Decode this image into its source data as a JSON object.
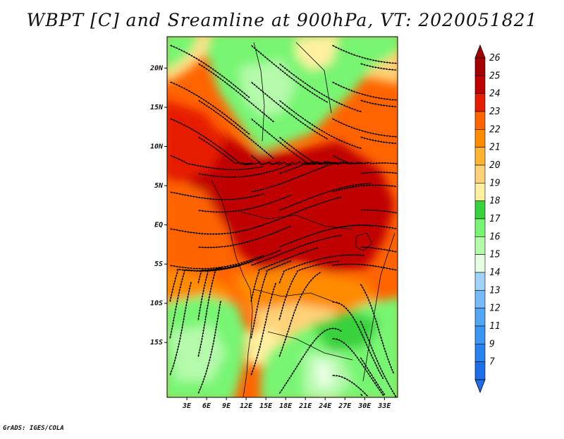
{
  "title": "WBPT [C] and Sreamline at 900hPa, VT: 2020051821",
  "credit": "GrADS: IGES/COLA",
  "map": {
    "field": "Wet-bulb potential temperature",
    "units": "C",
    "level": "900hPa",
    "valid_time": "2020051821",
    "lon_range": [
      0,
      35
    ],
    "lat_range": [
      -22,
      24
    ],
    "x_ticks": [
      {
        "lon": 3,
        "label": "3E"
      },
      {
        "lon": 6,
        "label": "6E"
      },
      {
        "lon": 9,
        "label": "9E"
      },
      {
        "lon": 12,
        "label": "12E"
      },
      {
        "lon": 15,
        "label": "15E"
      },
      {
        "lon": 18,
        "label": "18E"
      },
      {
        "lon": 21,
        "label": "21E"
      },
      {
        "lon": 24,
        "label": "24E"
      },
      {
        "lon": 27,
        "label": "27E"
      },
      {
        "lon": 30,
        "label": "30E"
      },
      {
        "lon": 33,
        "label": "33E"
      }
    ],
    "y_ticks": [
      {
        "lat": 20,
        "label": "20N"
      },
      {
        "lat": 15,
        "label": "15N"
      },
      {
        "lat": 10,
        "label": "10N"
      },
      {
        "lat": 5,
        "label": "5N"
      },
      {
        "lat": 0,
        "label": "EQ"
      },
      {
        "lat": -5,
        "label": "5S"
      },
      {
        "lat": -10,
        "label": "10S"
      },
      {
        "lat": -15,
        "label": "15S"
      }
    ],
    "regions": [
      {
        "name": "north-green-region",
        "level": "16",
        "lon_center": 18,
        "lat_center": 18
      },
      {
        "name": "southwest-green-region",
        "level": "16",
        "lon_center": 5,
        "lat_center": -14
      },
      {
        "name": "southeast-green-region",
        "level": "17",
        "lon_center": 26,
        "lat_center": -14
      },
      {
        "name": "central-hot-core",
        "level": "25",
        "lon_center": 17,
        "lat_center": 4
      }
    ]
  },
  "colorbar": {
    "levels": [
      "7",
      "9",
      "11",
      "12",
      "13",
      "14",
      "15",
      "16",
      "17",
      "18",
      "19",
      "20",
      "21",
      "22",
      "23",
      "24",
      "25",
      "26"
    ],
    "colors": [
      "#1e6eeb",
      "#2882f0",
      "#3c96f5",
      "#50a5f5",
      "#78b9fa",
      "#a0d2fa",
      "#e6ffe1",
      "#b4faaa",
      "#78f573",
      "#37d23c",
      "#fff0a0",
      "#ffd278",
      "#ffb432",
      "#ff8c00",
      "#ff6400",
      "#e61e00",
      "#c00000",
      "#a50000"
    ]
  }
}
